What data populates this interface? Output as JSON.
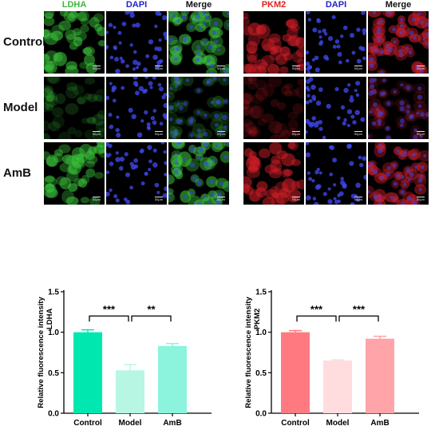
{
  "figure": {
    "rows": [
      "Control",
      "Model",
      "AmB"
    ],
    "panels": [
      {
        "id": "ldha",
        "channels": [
          {
            "label": "LDHA",
            "color": "#3cb83c"
          },
          {
            "label": "DAPI",
            "color": "#2222cc"
          },
          {
            "label": "Merge",
            "color": "#111111"
          }
        ]
      },
      {
        "id": "pkm2",
        "channels": [
          {
            "label": "PKM2",
            "color": "#e02020"
          },
          {
            "label": "DAPI",
            "color": "#2222cc"
          },
          {
            "label": "Merge",
            "color": "#111111"
          }
        ]
      }
    ],
    "scale_bar": "50μm"
  },
  "chart_data": [
    {
      "type": "bar",
      "categories": [
        "Control",
        "Model",
        "AmB"
      ],
      "values": [
        1.0,
        0.53,
        0.83
      ],
      "errors": [
        0.03,
        0.07,
        0.03
      ],
      "colors": [
        "#00e8b0",
        "#b8f6e4",
        "#8cf3dc"
      ],
      "ylabel": "Relative fluorescence intensity",
      "ylabel2": "LDHA",
      "ylim": [
        0,
        1.5
      ],
      "yticks": [
        "0.0",
        "0.5",
        "1.0",
        "1.5"
      ],
      "significance": [
        {
          "from": 0,
          "to": 1,
          "label": "***"
        },
        {
          "from": 1,
          "to": 2,
          "label": "**"
        }
      ]
    },
    {
      "type": "bar",
      "categories": [
        "Control",
        "Model",
        "AmB"
      ],
      "values": [
        1.0,
        0.65,
        0.92
      ],
      "errors": [
        0.02,
        0.01,
        0.03
      ],
      "colors": [
        "#ff7a80",
        "#ffdcde",
        "#ffa4a8"
      ],
      "ylabel": "Relative fluorescence intensity",
      "ylabel2": "PKM2",
      "ylim": [
        0,
        1.5
      ],
      "yticks": [
        "0.0",
        "0.5",
        "1.0",
        "1.5"
      ],
      "significance": [
        {
          "from": 0,
          "to": 1,
          "label": "***"
        },
        {
          "from": 1,
          "to": 2,
          "label": "***"
        }
      ]
    }
  ]
}
